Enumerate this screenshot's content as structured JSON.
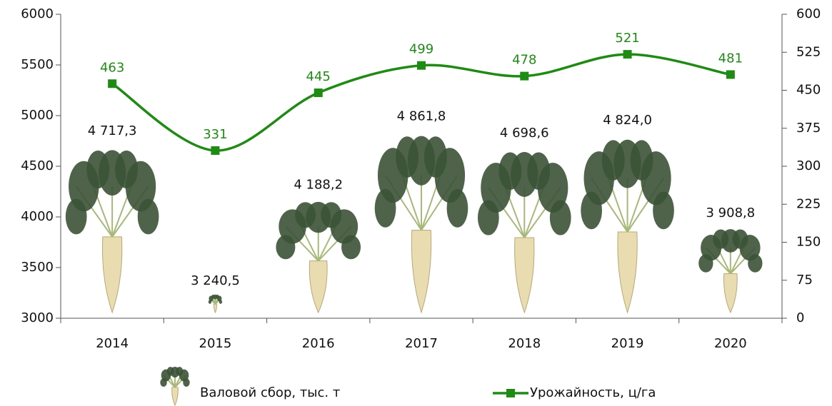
{
  "chart_data": {
    "type": "bar",
    "categories": [
      "2014",
      "2015",
      "2016",
      "2017",
      "2018",
      "2019",
      "2020"
    ],
    "series": [
      {
        "name": "Валовой сбор, тыс. т",
        "type": "bar",
        "color": "#3b5236",
        "values": [
          4717.3,
          3240.5,
          4188.2,
          4861.8,
          4698.6,
          4824.0,
          3908.8
        ],
        "value_labels": [
          "4 717,3",
          "3 240,5",
          "4 188,2",
          "4 861,8",
          "4 698,6",
          "4 824,0",
          "3 908,8"
        ]
      },
      {
        "name": "Урожайность, ц/га",
        "type": "line",
        "axis": "y2",
        "color": "#1f8a14",
        "values": [
          463,
          331,
          445,
          499,
          478,
          521,
          481
        ]
      }
    ],
    "ylim": [
      3000,
      6000
    ],
    "yticks": [
      3000,
      3500,
      4000,
      4500,
      5000,
      5500,
      6000
    ],
    "y2lim": [
      0,
      600
    ],
    "y2ticks": [
      0,
      75,
      150,
      225,
      300,
      375,
      450,
      525,
      600
    ]
  }
}
